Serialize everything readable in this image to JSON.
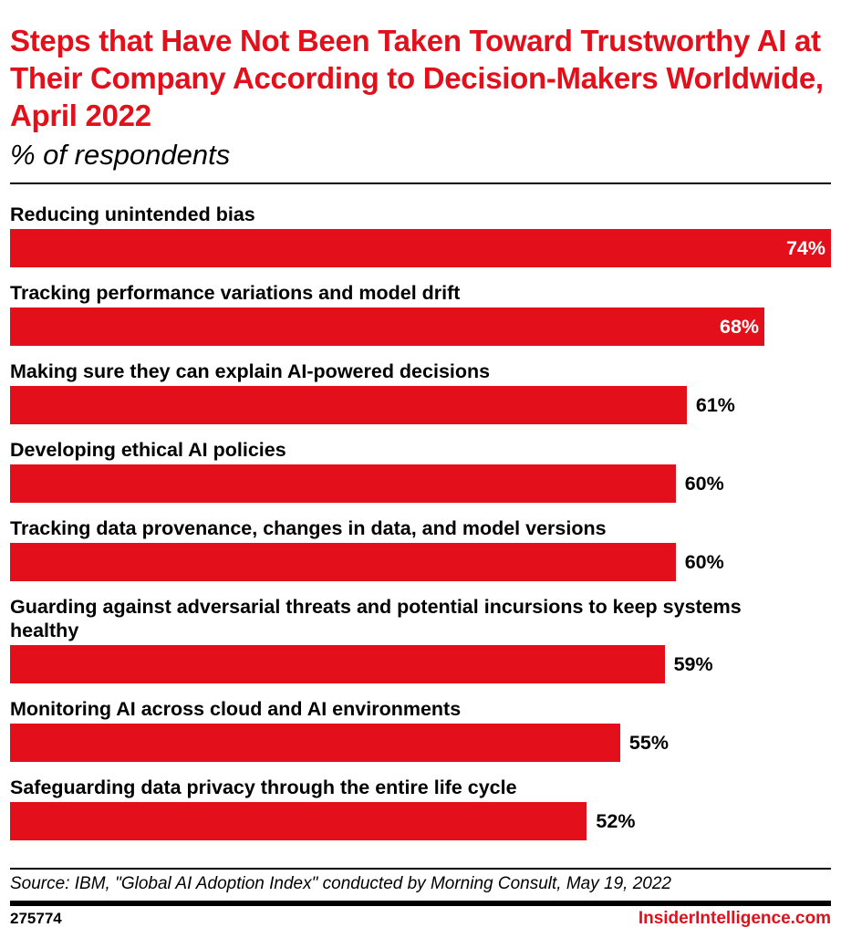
{
  "header": {
    "title": "Steps that Have Not Been Taken Toward Trustworthy AI at Their Company According to Decision-Makers Worldwide, April 2022",
    "subtitle": "% of respondents"
  },
  "chart_data": {
    "type": "bar",
    "orientation": "horizontal",
    "title": "Steps that Have Not Been Taken Toward Trustworthy AI at Their Company According to Decision-Makers Worldwide, April 2022",
    "subtitle": "% of respondents",
    "categories": [
      "Reducing unintended bias",
      "Tracking performance variations and model drift",
      "Making sure they can explain AI-powered decisions",
      "Developing ethical AI policies",
      "Tracking data provenance, changes in data, and model versions",
      "Guarding against adversarial threats and potential incursions to keep systems healthy",
      "Monitoring AI across cloud and AI environments",
      "Safeguarding data privacy through the entire life cycle"
    ],
    "values": [
      74,
      68,
      61,
      60,
      60,
      59,
      55,
      52
    ],
    "labels": [
      "74%",
      "68%",
      "61%",
      "60%",
      "60%",
      "59%",
      "55%",
      "52%"
    ],
    "xlim": [
      0,
      74
    ],
    "grid": false,
    "bar_color": "#e3101b"
  },
  "footer": {
    "source": "Source: IBM, \"Global AI Adoption Index\" conducted by Morning Consult, May 19, 2022",
    "id": "275774",
    "brand": "InsiderIntelligence.com"
  }
}
